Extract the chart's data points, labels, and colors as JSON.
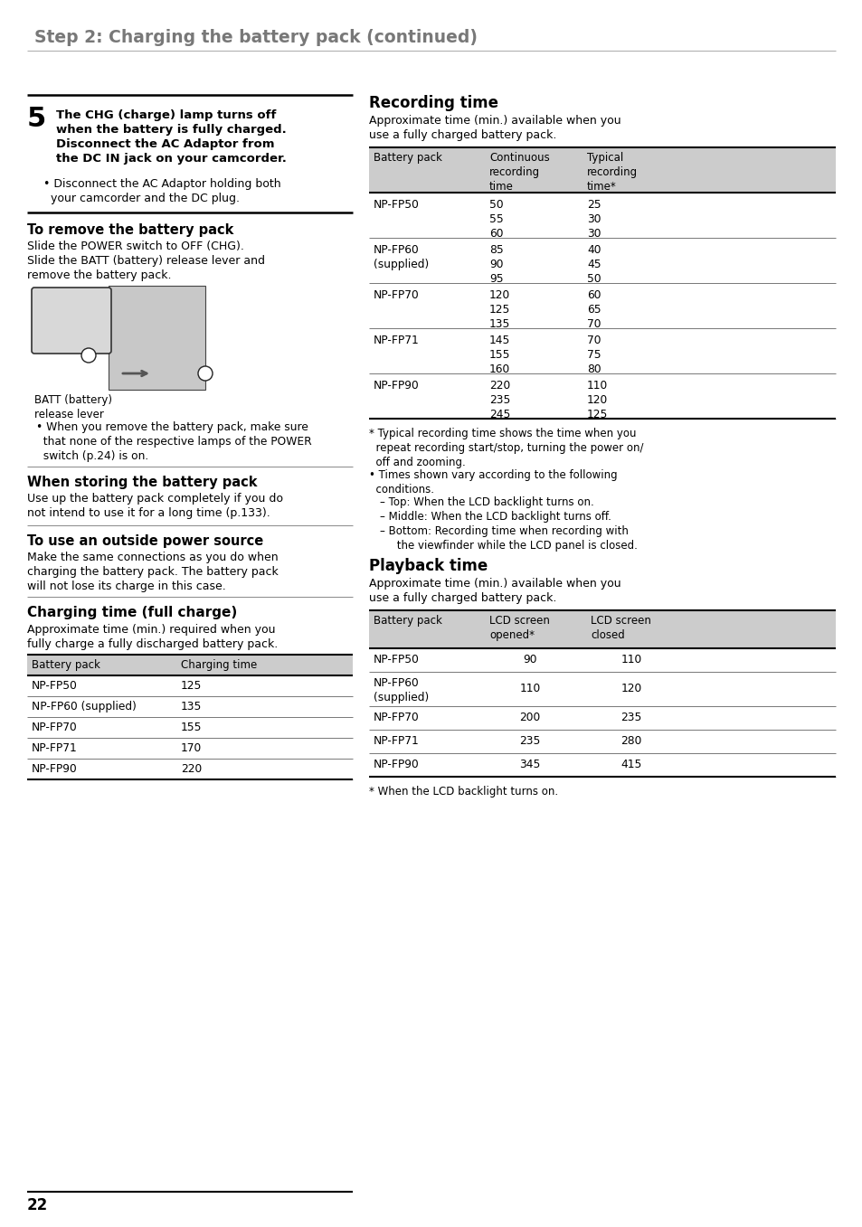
{
  "page_title": "Step 2: Charging the battery pack (continued)",
  "page_number": "22",
  "bg_color": "#ffffff",
  "title_color": "#787878",
  "left": {
    "step5_num": "5",
    "step5_text": "The CHG (charge) lamp turns off\nwhen the battery is fully charged.\nDisconnect the AC Adaptor from\nthe DC IN jack on your camcorder.",
    "step5_bullet": "• Disconnect the AC Adaptor holding both\n  your camcorder and the DC plug.",
    "remove_heading": "To remove the battery pack",
    "remove_text": "Slide the POWER switch to OFF (CHG).\nSlide the BATT (battery) release lever and\nremove the battery pack.",
    "batt_label": "BATT (battery)\nrelease lever",
    "remove_bullet": "• When you remove the battery pack, make sure\n  that none of the respective lamps of the POWER\n  switch (p.24) is on.",
    "storing_heading": "When storing the battery pack",
    "storing_text": "Use up the battery pack completely if you do\nnot intend to use it for a long time (p.133).",
    "outside_heading": "To use an outside power source",
    "outside_text": "Make the same connections as you do when\ncharging the battery pack. The battery pack\nwill not lose its charge in this case.",
    "charging_heading": "Charging time (full charge)",
    "charging_desc": "Approximate time (min.) required when you\nfully charge a fully discharged battery pack.",
    "charge_hdr": [
      "Battery pack",
      "Charging time"
    ],
    "charge_rows": [
      [
        "NP-FP50",
        "125"
      ],
      [
        "NP-FP60 (supplied)",
        "135"
      ],
      [
        "NP-FP70",
        "155"
      ],
      [
        "NP-FP71",
        "170"
      ],
      [
        "NP-FP90",
        "220"
      ]
    ]
  },
  "right": {
    "recording_heading": "Recording time",
    "recording_desc": "Approximate time (min.) available when you\nuse a fully charged battery pack.",
    "record_hdr": [
      "Battery pack",
      "Continuous\nrecording\ntime",
      "Typical\nrecording\ntime*"
    ],
    "record_rows": [
      [
        "NP-FP50",
        "50\n55\n60",
        "25\n30\n30"
      ],
      [
        "NP-FP60\n(supplied)",
        "85\n90\n95",
        "40\n45\n50"
      ],
      [
        "NP-FP70",
        "120\n125\n135",
        "60\n65\n70"
      ],
      [
        "NP-FP71",
        "145\n155\n160",
        "70\n75\n80"
      ],
      [
        "NP-FP90",
        "220\n235\n245",
        "110\n120\n125"
      ]
    ],
    "record_note1": "* Typical recording time shows the time when you\n  repeat recording start/stop, turning the power on/\n  off and zooming.",
    "record_note2": "• Times shown vary according to the following\n  conditions.",
    "record_note3": "– Top: When the LCD backlight turns on.",
    "record_note4": "– Middle: When the LCD backlight turns off.",
    "record_note5": "– Bottom: Recording time when recording with\n     the viewfinder while the LCD panel is closed.",
    "playback_heading": "Playback time",
    "playback_desc": "Approximate time (min.) available when you\nuse a fully charged battery pack.",
    "play_hdr": [
      "Battery pack",
      "LCD screen\nopened*",
      "LCD screen\nclosed"
    ],
    "play_rows": [
      [
        "NP-FP50",
        "90",
        "110"
      ],
      [
        "NP-FP60\n(supplied)",
        "110",
        "120"
      ],
      [
        "NP-FP70",
        "200",
        "235"
      ],
      [
        "NP-FP71",
        "235",
        "280"
      ],
      [
        "NP-FP90",
        "345",
        "415"
      ]
    ],
    "play_note": "* When the LCD backlight turns on."
  }
}
